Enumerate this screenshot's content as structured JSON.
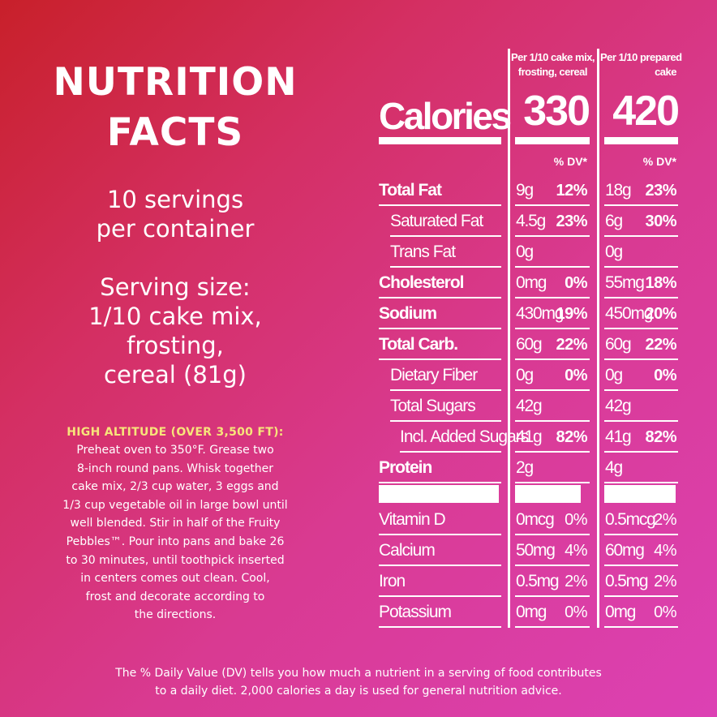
{
  "left": {
    "title_line1": "NUTRITION",
    "title_line2": "FACTS",
    "servings_line1": "10 servings",
    "servings_line2": "per container",
    "serving_size_lines": [
      "Serving size:",
      "1/10 cake mix,",
      "frosting,",
      "cereal (81g)"
    ],
    "altitude_heading": "HIGH ALTITUDE (OVER 3,500 FT):",
    "altitude_lines": [
      "Preheat oven to 350°F. Grease two",
      "8-inch round pans. Whisk together",
      "cake mix, 2/3 cup water, 3 eggs and",
      "1/3 cup vegetable oil in large bowl until",
      "well blended. Stir in half of the Fruity",
      "Pebbles™. Pour into pans and bake 26",
      "to 30 minutes, until toothpick inserted",
      "in centers comes out clean. Cool,",
      "frost and decorate according to",
      "the directions."
    ]
  },
  "table": {
    "col1_header_line1": "Per 1/10 cake mix,",
    "col1_header_line2": "frosting, cereal",
    "col2_header_line1": "Per 1/10 prepared",
    "col2_header_line2": "cake",
    "calories_label": "Calories",
    "calories_col1": "330",
    "calories_col2": "420",
    "dv_label": "% DV*",
    "rows": [
      {
        "label": "Total Fat",
        "bold": true,
        "indent": 0,
        "v1": "9g",
        "p1": "12%",
        "v2": "18g",
        "p2": "23%"
      },
      {
        "label": "Saturated Fat",
        "bold": false,
        "indent": 1,
        "v1": "4.5g",
        "p1": "23%",
        "v2": "6g",
        "p2": "30%"
      },
      {
        "label": "Trans Fat",
        "bold": false,
        "indent": 1,
        "v1": "0g",
        "p1": "",
        "v2": "0g",
        "p2": ""
      },
      {
        "label": "Cholesterol",
        "bold": true,
        "indent": 0,
        "v1": "0mg",
        "p1": "0%",
        "v2": "55mg",
        "p2": "18%"
      },
      {
        "label": "Sodium",
        "bold": true,
        "indent": 0,
        "v1": "430mg",
        "p1": "19%",
        "v2": "450mg",
        "p2": "20%"
      },
      {
        "label": "Total Carb.",
        "bold": true,
        "indent": 0,
        "v1": "60g",
        "p1": "22%",
        "v2": "60g",
        "p2": "22%"
      },
      {
        "label": "Dietary Fiber",
        "bold": false,
        "indent": 1,
        "v1": "0g",
        "p1": "0%",
        "v2": "0g",
        "p2": "0%"
      },
      {
        "label": "Total Sugars",
        "bold": false,
        "indent": 1,
        "v1": "42g",
        "p1": "",
        "v2": "42g",
        "p2": ""
      },
      {
        "label": "Incl. Added Sugars",
        "bold": false,
        "indent": 2,
        "v1": "41g",
        "p1": "82%",
        "v2": "41g",
        "p2": "82%"
      },
      {
        "label": "Protein",
        "bold": true,
        "indent": 0,
        "v1": "2g",
        "p1": "",
        "v2": "4g",
        "p2": ""
      }
    ],
    "vitamins": [
      {
        "label": "Vitamin D",
        "v1": "0mcg",
        "p1": "0%",
        "v2": "0.5mcg",
        "p2": "2%"
      },
      {
        "label": "Calcium",
        "v1": "50mg",
        "p1": "4%",
        "v2": "60mg",
        "p2": "4%"
      },
      {
        "label": "Iron",
        "v1": "0.5mg",
        "p1": "2%",
        "v2": "0.5mg",
        "p2": "2%"
      },
      {
        "label": "Potassium",
        "v1": "0mg",
        "p1": "0%",
        "v2": "0mg",
        "p2": "0%"
      }
    ]
  },
  "footnote_line1": "The % Daily Value (DV) tells you how much a nutrient in a serving of food contributes",
  "footnote_line2": "to a daily diet. 2,000 calories a day is used for general nutrition advice."
}
